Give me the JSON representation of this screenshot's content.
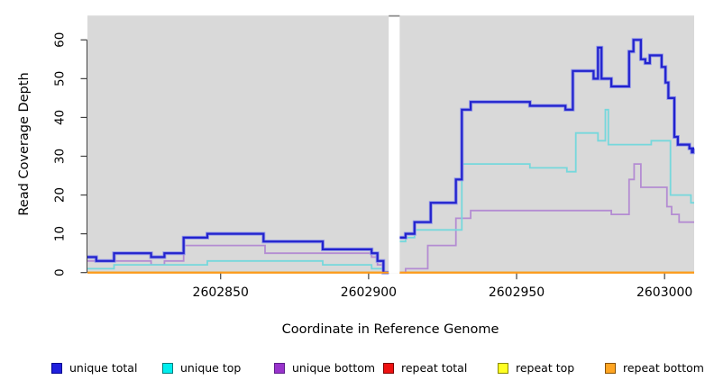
{
  "chart_data": {
    "type": "line",
    "subtype": "step-coverage",
    "title": "",
    "xlabel": "Coordinate in Reference Genome",
    "ylabel": "Read Coverage Depth",
    "xlim": [
      2602805,
      2603010
    ],
    "ylim": [
      0,
      66
    ],
    "x_ticks": {
      "values": [
        2602850,
        2602900,
        2602950,
        2603000
      ],
      "labels": [
        "2602850",
        "2602900",
        "2602950",
        "2603000"
      ]
    },
    "y_ticks": {
      "values": [
        0,
        10,
        20,
        30,
        40,
        50,
        60
      ],
      "labels": [
        "0",
        "10",
        "20",
        "30",
        "40",
        "50",
        "60"
      ]
    },
    "grid": false,
    "legend_position": "bottom",
    "plot_bg": "#d9d9d9",
    "gap_region": {
      "from": 2602906.8,
      "to": 2602910.5,
      "color": "#ffffff"
    },
    "series": [
      {
        "name": "repeat total",
        "color": "#cc2222",
        "width": 1.8,
        "segments": [
          [
            [
              2602805,
              0
            ],
            [
              2602906.8,
              0
            ]
          ],
          [
            [
              2602910.5,
              0
            ],
            [
              2603010,
              0
            ]
          ]
        ]
      },
      {
        "name": "repeat top",
        "color": "#e6e600",
        "width": 1.8,
        "segments": [
          [
            [
              2602805,
              0
            ],
            [
              2602906.8,
              0
            ]
          ],
          [
            [
              2602910.5,
              0
            ],
            [
              2603010,
              0
            ]
          ]
        ]
      },
      {
        "name": "unique bottom",
        "color": "#b48cd2",
        "width": 1.8,
        "segments": [
          [
            [
              2602805,
              3
            ],
            [
              2602826.5,
              2
            ],
            [
              2602831,
              3
            ],
            [
              2602837.5,
              7
            ],
            [
              2602865,
              5
            ],
            [
              2602901,
              4
            ],
            [
              2602903,
              2
            ],
            [
              2602905,
              0
            ],
            [
              2602906.8,
              0
            ]
          ],
          [
            [
              2602910.5,
              0
            ],
            [
              2602912.5,
              1
            ],
            [
              2602920,
              7
            ],
            [
              2602929.5,
              14
            ],
            [
              2602934.5,
              16
            ],
            [
              2602982,
              15
            ],
            [
              2602988,
              24
            ],
            [
              2602989.7,
              28
            ],
            [
              2602992,
              22
            ],
            [
              2603000.8,
              17
            ],
            [
              2603002.4,
              15
            ],
            [
              2603004.9,
              13
            ],
            [
              2603010,
              13
            ]
          ]
        ]
      },
      {
        "name": "unique top",
        "color": "#76d8dc",
        "width": 1.8,
        "segments": [
          [
            [
              2602805,
              1
            ],
            [
              2602814,
              2
            ],
            [
              2602845.5,
              3
            ],
            [
              2602884.5,
              2
            ],
            [
              2602901,
              1
            ],
            [
              2602905,
              0
            ],
            [
              2602906.8,
              0
            ]
          ],
          [
            [
              2602910.5,
              8
            ],
            [
              2602912.5,
              9
            ],
            [
              2602915.5,
              11
            ],
            [
              2602931.5,
              28
            ],
            [
              2602954.5,
              27
            ],
            [
              2602967,
              26
            ],
            [
              2602970,
              36
            ],
            [
              2602977.5,
              34
            ],
            [
              2602980,
              42
            ],
            [
              2602981,
              33
            ],
            [
              2602995.5,
              34
            ],
            [
              2603002,
              20
            ],
            [
              2603008.9,
              18
            ],
            [
              2603010,
              18
            ]
          ]
        ]
      },
      {
        "name": "unique total",
        "color": "#2323cd",
        "halo": "#9398e8",
        "width": 2.2,
        "segments": [
          [
            [
              2602805,
              4
            ],
            [
              2602808,
              3
            ],
            [
              2602814,
              5
            ],
            [
              2602826.5,
              4
            ],
            [
              2602831,
              5
            ],
            [
              2602837.5,
              9
            ],
            [
              2602845.5,
              10
            ],
            [
              2602864.5,
              8
            ],
            [
              2602884.5,
              6
            ],
            [
              2602901,
              5
            ],
            [
              2602903,
              3
            ],
            [
              2602905,
              0
            ],
            [
              2602906.8,
              0
            ]
          ],
          [
            [
              2602910.5,
              9
            ],
            [
              2602912.5,
              10
            ],
            [
              2602915.5,
              13
            ],
            [
              2602921,
              18
            ],
            [
              2602929.5,
              24
            ],
            [
              2602931.5,
              42
            ],
            [
              2602934.5,
              44
            ],
            [
              2602954.5,
              43
            ],
            [
              2602966.5,
              42
            ],
            [
              2602969,
              52
            ],
            [
              2602976,
              50
            ],
            [
              2602977.5,
              58
            ],
            [
              2602978.7,
              50
            ],
            [
              2602982,
              48
            ],
            [
              2602988,
              57
            ],
            [
              2602989.5,
              60
            ],
            [
              2602992,
              55
            ],
            [
              2602993.5,
              54
            ],
            [
              2602995,
              56
            ],
            [
              2602999,
              53
            ],
            [
              2603000.3,
              49
            ],
            [
              2603001.3,
              45
            ],
            [
              2603003.3,
              35
            ],
            [
              2603004.5,
              33
            ],
            [
              2603008.4,
              32
            ],
            [
              2603009.2,
              31
            ],
            [
              2603009.6,
              32
            ],
            [
              2603010,
              32
            ]
          ]
        ]
      },
      {
        "name": "repeat bottom",
        "color": "#ff9a1a",
        "width": 2.0,
        "segments": [
          [
            [
              2602805,
              0
            ],
            [
              2602906.8,
              0
            ]
          ],
          [
            [
              2602910.5,
              0
            ],
            [
              2603010,
              0
            ]
          ]
        ]
      }
    ],
    "legend": [
      {
        "label": "unique total",
        "fill": "#2020dd",
        "border": "#000090"
      },
      {
        "label": "unique top",
        "fill": "#00eeee",
        "border": "#007d7d"
      },
      {
        "label": "unique bottom",
        "fill": "#9933cc",
        "border": "#5e1f8a"
      },
      {
        "label": "repeat total",
        "fill": "#ee1111",
        "border": "#7d0000"
      },
      {
        "label": "repeat top",
        "fill": "#ffff22",
        "border": "#8a8a00"
      },
      {
        "label": "repeat bottom",
        "fill": "#ffa522",
        "border": "#8a5200"
      }
    ]
  }
}
